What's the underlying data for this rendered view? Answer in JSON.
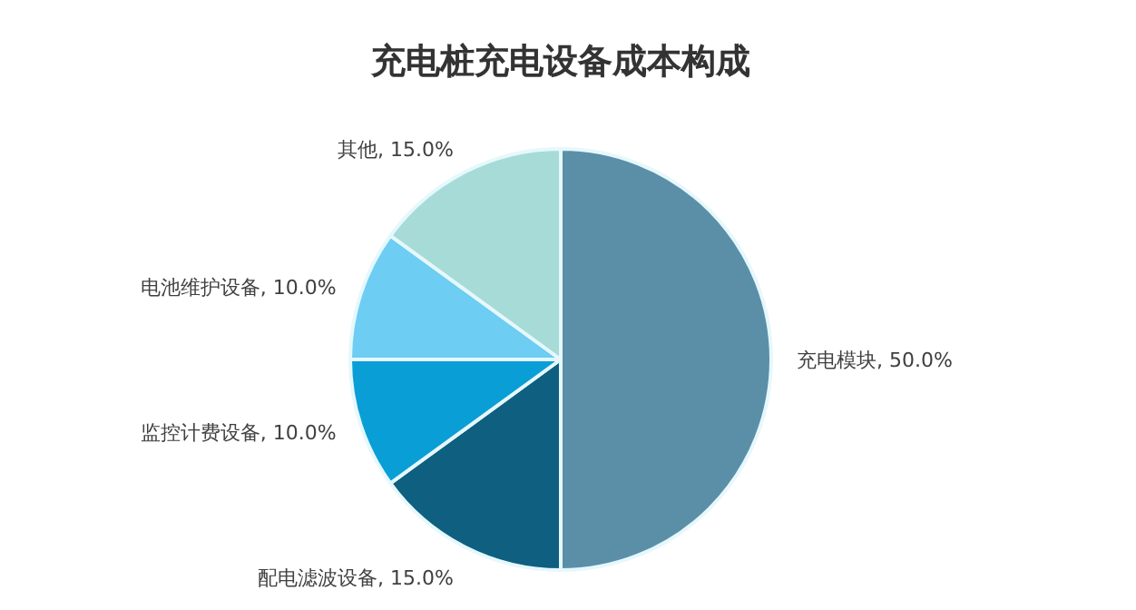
{
  "chart_data": {
    "type": "pie",
    "title": "充电桩充电设备成本构成",
    "categories": [
      "充电模块",
      "配电滤波设备",
      "监控计费设备",
      "电池维护设备",
      "其他"
    ],
    "values": [
      50,
      15,
      10,
      10,
      15
    ],
    "value_labels": [
      "50.0%",
      "15.0%",
      "10.0%",
      "10.0%",
      "15.0%"
    ],
    "colors": [
      "#5b8fa8",
      "#0e5f80",
      "#0a9ed6",
      "#6dcdf3",
      "#a6dbd8"
    ],
    "legend": false
  }
}
